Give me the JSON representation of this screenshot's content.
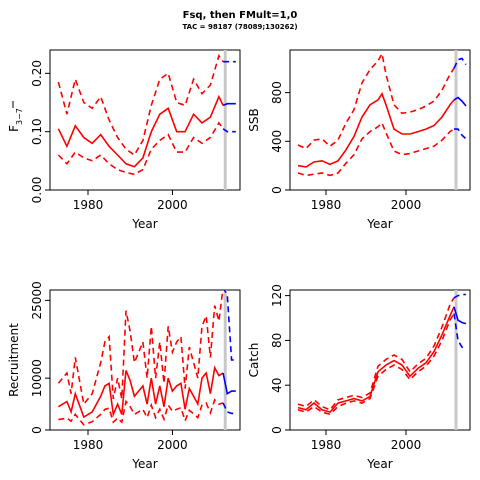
{
  "title": "Fsq, then FMult=1,0",
  "subtitle": "TAC = 98187 (78089;130262)",
  "colors": {
    "historical": "#ff0000",
    "projection": "#0000ff",
    "marker": "#c8c8c8"
  },
  "chart_data": [
    {
      "type": "line",
      "ylabel": "F̅ 3−7",
      "ylabel_main": "F",
      "ylabel_sub": "3−7",
      "xlabel": "Year",
      "xlim": [
        1971,
        2016
      ],
      "ylim": [
        0,
        0.24
      ],
      "x_ticks": [
        "1980",
        "2000"
      ],
      "y_ticks": [
        "0.00",
        "0.10",
        "0.20"
      ],
      "years": [
        1973,
        1975,
        1977,
        1979,
        1981,
        1983,
        1985,
        1987,
        1989,
        1991,
        1993,
        1995,
        1997,
        1999,
        2001,
        2003,
        2005,
        2007,
        2009,
        2011,
        2012
      ],
      "estimate": [
        0.105,
        0.075,
        0.11,
        0.09,
        0.08,
        0.095,
        0.075,
        0.06,
        0.045,
        0.04,
        0.055,
        0.1,
        0.13,
        0.14,
        0.1,
        0.1,
        0.13,
        0.115,
        0.125,
        0.16,
        0.145
      ],
      "lower": [
        0.06,
        0.045,
        0.065,
        0.055,
        0.05,
        0.06,
        0.045,
        0.035,
        0.03,
        0.027,
        0.035,
        0.07,
        0.085,
        0.095,
        0.065,
        0.065,
        0.09,
        0.08,
        0.09,
        0.115,
        0.105
      ],
      "upper": [
        0.185,
        0.13,
        0.19,
        0.15,
        0.14,
        0.16,
        0.12,
        0.09,
        0.07,
        0.06,
        0.085,
        0.145,
        0.19,
        0.2,
        0.15,
        0.145,
        0.19,
        0.165,
        0.18,
        0.23,
        0.22
      ],
      "proj_years": [
        2013,
        2014,
        2015
      ],
      "proj_estimate": [
        0.148,
        0.148,
        0.148
      ],
      "proj_lower": [
        0.1,
        0.1,
        0.1
      ],
      "proj_upper": [
        0.22,
        0.22,
        0.22
      ]
    },
    {
      "type": "line",
      "ylabel": "SSB",
      "xlabel": "Year",
      "xlim": [
        1971,
        2016
      ],
      "ylim": [
        0,
        1150
      ],
      "x_ticks": [
        "1980",
        "2000"
      ],
      "y_ticks": [
        "0",
        "400",
        "800"
      ],
      "years": [
        1973,
        1975,
        1977,
        1979,
        1981,
        1983,
        1985,
        1987,
        1989,
        1991,
        1993,
        1994,
        1995,
        1997,
        1999,
        2001,
        2003,
        2005,
        2007,
        2009,
        2011,
        2012
      ],
      "estimate": [
        200,
        190,
        230,
        240,
        210,
        240,
        330,
        440,
        600,
        700,
        740,
        790,
        700,
        500,
        460,
        460,
        480,
        500,
        530,
        600,
        700,
        740
      ],
      "lower": [
        140,
        120,
        130,
        140,
        120,
        140,
        220,
        290,
        420,
        480,
        520,
        550,
        470,
        320,
        290,
        300,
        320,
        340,
        360,
        410,
        480,
        500
      ],
      "upper": [
        370,
        340,
        410,
        420,
        360,
        410,
        550,
        660,
        880,
        990,
        1060,
        1120,
        950,
        700,
        630,
        640,
        660,
        690,
        730,
        820,
        950,
        1000
      ],
      "proj_years": [
        2013,
        2014,
        2015
      ],
      "proj_estimate": [
        760,
        730,
        690
      ],
      "proj_lower": [
        500,
        450,
        420
      ],
      "proj_upper": [
        1070,
        1080,
        1030
      ]
    },
    {
      "type": "line",
      "ylabel": "Recruitment",
      "xlabel": "Year",
      "xlim": [
        1971,
        2016
      ],
      "ylim": [
        0,
        27000
      ],
      "x_ticks": [
        "1980",
        "2000"
      ],
      "y_ticks": [
        "0",
        "10000",
        "25000"
      ],
      "years": [
        1973,
        1975,
        1976,
        1977,
        1979,
        1981,
        1983,
        1984,
        1985,
        1986,
        1987,
        1988,
        1989,
        1990,
        1991,
        1993,
        1994,
        1995,
        1996,
        1997,
        1998,
        1999,
        2000,
        2001,
        2002,
        2003,
        2004,
        2005,
        2006,
        2007,
        2008,
        2009,
        2010,
        2011,
        2012
      ],
      "estimate": [
        4500,
        5500,
        3500,
        7000,
        2500,
        3500,
        6500,
        8500,
        9000,
        3000,
        5000,
        3000,
        11500,
        9500,
        6500,
        8500,
        5000,
        10000,
        5000,
        8500,
        4500,
        10000,
        7500,
        8500,
        9000,
        4000,
        8000,
        6500,
        5000,
        10000,
        11000,
        7000,
        12000,
        10500,
        11000
      ],
      "lower": [
        2000,
        2300,
        1700,
        3000,
        1000,
        1600,
        3000,
        4000,
        4200,
        1500,
        2300,
        1500,
        5500,
        4500,
        3000,
        4000,
        2400,
        4800,
        2400,
        4000,
        2100,
        4800,
        3600,
        4000,
        4300,
        1800,
        3800,
        3100,
        2400,
        4800,
        5200,
        3300,
        5800,
        5000,
        5200
      ],
      "upper": [
        9000,
        11000,
        7000,
        14000,
        5000,
        7000,
        13000,
        17000,
        18000,
        6000,
        10000,
        6000,
        23000,
        19000,
        13000,
        17000,
        10000,
        20000,
        10000,
        17000,
        9000,
        20000,
        15000,
        17000,
        18000,
        8000,
        16000,
        13000,
        10000,
        20000,
        22000,
        14000,
        24000,
        21000,
        27500
      ],
      "proj_years": [
        2013,
        2014,
        2015
      ],
      "proj_estimate": [
        7000,
        7500,
        7500
      ],
      "proj_lower": [
        3500,
        3200,
        3200
      ],
      "proj_upper": [
        26000,
        13500,
        13500
      ]
    },
    {
      "type": "line",
      "ylabel": "Catch",
      "xlabel": "Year",
      "xlim": [
        1971,
        2016
      ],
      "ylim": [
        0,
        125
      ],
      "x_ticks": [
        "1980",
        "2000"
      ],
      "y_ticks": [
        "0",
        "40",
        "80",
        "120"
      ],
      "years": [
        1973,
        1975,
        1977,
        1979,
        1981,
        1983,
        1985,
        1987,
        1989,
        1991,
        1993,
        1995,
        1997,
        1999,
        2001,
        2003,
        2005,
        2007,
        2009,
        2011,
        2012
      ],
      "estimate": [
        20,
        18,
        24,
        18,
        16,
        24,
        26,
        28,
        26,
        30,
        52,
        58,
        62,
        58,
        48,
        55,
        60,
        70,
        85,
        102,
        110
      ],
      "lower": [
        18,
        16,
        21,
        16,
        14,
        21,
        24,
        26,
        24,
        28,
        48,
        54,
        58,
        54,
        45,
        52,
        57,
        66,
        80,
        98,
        104
      ],
      "upper": [
        23,
        21,
        27,
        21,
        18,
        27,
        29,
        31,
        29,
        33,
        57,
        63,
        67,
        63,
        52,
        59,
        64,
        75,
        92,
        112,
        118
      ],
      "proj_years": [
        2013,
        2014,
        2015
      ],
      "proj_estimate": [
        98,
        96,
        95
      ],
      "proj_lower": [
        80,
        74,
        72
      ],
      "proj_upper": [
        120,
        121,
        121
      ]
    }
  ]
}
